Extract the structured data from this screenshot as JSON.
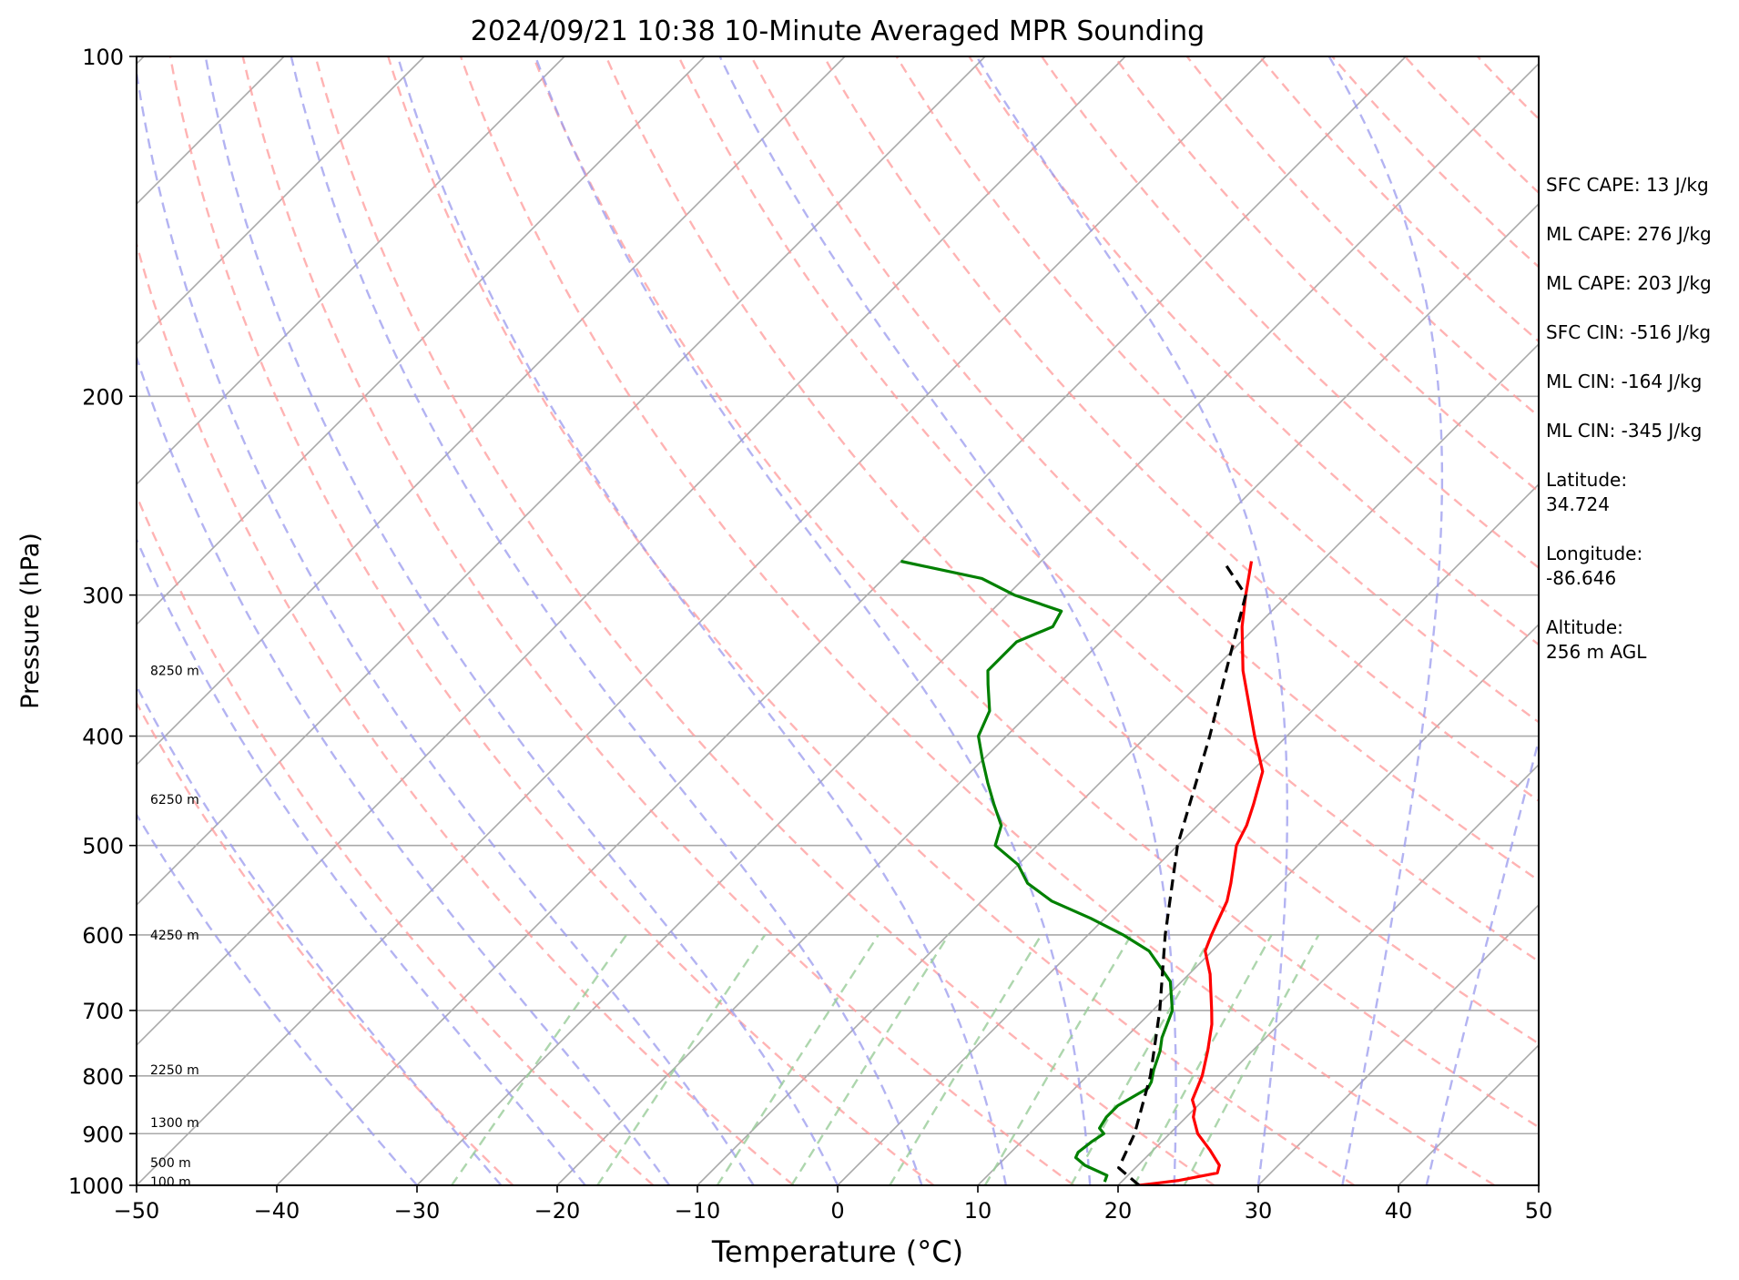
{
  "chart_data": {
    "type": "skew-t",
    "title": "2024/09/21 10:38 10-Minute Averaged MPR Sounding",
    "xlabel": "Temperature (°C)",
    "ylabel": "Pressure (hPa)",
    "xlim": [
      -50,
      50
    ],
    "ylim": [
      1000,
      100
    ],
    "y_scale": "log",
    "x_ticks": [
      "−50",
      "−40",
      "−30",
      "−20",
      "−10",
      "0",
      "10",
      "20",
      "30",
      "40",
      "50"
    ],
    "x_tick_values": [
      -50,
      -40,
      -30,
      -20,
      -10,
      0,
      10,
      20,
      30,
      40,
      50
    ],
    "y_ticks": [
      "100",
      "200",
      "300",
      "400",
      "500",
      "600",
      "700",
      "800",
      "900",
      "1000"
    ],
    "y_tick_values": [
      100,
      200,
      300,
      400,
      500,
      600,
      700,
      800,
      900,
      1000
    ],
    "height_labels": [
      {
        "p": 350,
        "label": "8250 m"
      },
      {
        "p": 455,
        "label": "6250 m"
      },
      {
        "p": 600,
        "label": "4250 m"
      },
      {
        "p": 790,
        "label": "2250 m"
      },
      {
        "p": 880,
        "label": "1300 m"
      },
      {
        "p": 955,
        "label": "500 m"
      },
      {
        "p": 993,
        "label": "100 m"
      }
    ],
    "series": [
      {
        "key": "temperature",
        "color": "#ff0000",
        "points": [
          [
            1000,
            21.5
          ],
          [
            990,
            24
          ],
          [
            975,
            26.2
          ],
          [
            960,
            25.8
          ],
          [
            930,
            24
          ],
          [
            900,
            22
          ],
          [
            870,
            20.5
          ],
          [
            855,
            20
          ],
          [
            840,
            19.2
          ],
          [
            800,
            18.2
          ],
          [
            760,
            16.8
          ],
          [
            720,
            15.2
          ],
          [
            700,
            14.2
          ],
          [
            650,
            11.5
          ],
          [
            620,
            9.5
          ],
          [
            600,
            8.8
          ],
          [
            560,
            7.5
          ],
          [
            540,
            6.5
          ],
          [
            500,
            4.2
          ],
          [
            480,
            3.5
          ],
          [
            460,
            2.5
          ],
          [
            430,
            0.8
          ],
          [
            400,
            -2.3
          ],
          [
            350,
            -7.8
          ],
          [
            320,
            -11
          ],
          [
            300,
            -13
          ],
          [
            280,
            -15
          ]
        ]
      },
      {
        "key": "dewpoint",
        "color": "#008000",
        "points": [
          [
            993,
            18.8
          ],
          [
            980,
            18.5
          ],
          [
            960,
            16.2
          ],
          [
            945,
            15
          ],
          [
            935,
            14.8
          ],
          [
            915,
            15
          ],
          [
            900,
            15.3
          ],
          [
            890,
            14.6
          ],
          [
            870,
            14.3
          ],
          [
            850,
            14.3
          ],
          [
            820,
            15.2
          ],
          [
            810,
            15
          ],
          [
            790,
            14.3
          ],
          [
            760,
            13.4
          ],
          [
            740,
            12.6
          ],
          [
            700,
            11.4
          ],
          [
            660,
            9.2
          ],
          [
            620,
            5.5
          ],
          [
            600,
            2.5
          ],
          [
            580,
            -1
          ],
          [
            560,
            -5
          ],
          [
            540,
            -8
          ],
          [
            520,
            -10
          ],
          [
            500,
            -13
          ],
          [
            480,
            -14
          ],
          [
            460,
            -16
          ],
          [
            440,
            -18
          ],
          [
            420,
            -20
          ],
          [
            400,
            -22
          ],
          [
            380,
            -23
          ],
          [
            360,
            -25
          ],
          [
            350,
            -26
          ],
          [
            340,
            -26
          ],
          [
            330,
            -26
          ],
          [
            320,
            -24.5
          ],
          [
            310,
            -25
          ],
          [
            300,
            -29.5
          ],
          [
            290,
            -33
          ],
          [
            280,
            -40
          ]
        ]
      },
      {
        "key": "parcel",
        "color": "#000000",
        "dashed": true,
        "points": [
          [
            1000,
            21.5
          ],
          [
            965,
            18.8
          ],
          [
            900,
            17.5
          ],
          [
            800,
            14.5
          ],
          [
            700,
            10.5
          ],
          [
            600,
            5.5
          ],
          [
            500,
            0
          ],
          [
            400,
            -5.5
          ],
          [
            350,
            -9
          ],
          [
            300,
            -13
          ],
          [
            280,
            -17
          ]
        ]
      }
    ],
    "annotations": [
      {
        "lines": [
          "SFC CAPE: 13 J/kg"
        ]
      },
      {
        "lines": [
          "ML CAPE: 276 J/kg"
        ]
      },
      {
        "lines": [
          "ML CAPE: 203 J/kg"
        ]
      },
      {
        "lines": [
          "SFC CIN: -516 J/kg"
        ]
      },
      {
        "lines": [
          "ML CIN: -164 J/kg"
        ]
      },
      {
        "lines": [
          "ML CIN: -345 J/kg"
        ]
      },
      {
        "lines": [
          "Latitude:",
          "34.724"
        ]
      },
      {
        "lines": [
          "Longitude:",
          "-86.646"
        ]
      },
      {
        "lines": [
          "Altitude:",
          "256 m AGL"
        ]
      }
    ],
    "background_lines": {
      "isotherms_color": "#a9a9a9",
      "isobars_color": "#a9a9a9",
      "dry_adiabats_color": "#ff9999",
      "moist_adiabats_color": "#9999ee",
      "mixing_ratio_color": "#99cc99"
    }
  }
}
